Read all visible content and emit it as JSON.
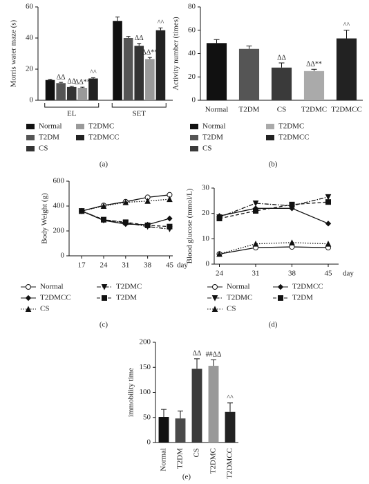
{
  "chart_data": [
    {
      "type": "bar",
      "ylabel": "Morris water maze (s)",
      "label": "(a)",
      "categories": [
        "EL",
        "SET"
      ],
      "ylim": [
        0,
        60
      ],
      "yticks": [
        0,
        20,
        40,
        60
      ],
      "series": [
        {
          "name": "Normal",
          "color": "#111111",
          "values": [
            13,
            51
          ],
          "errors": [
            0.5,
            2.5
          ],
          "annotations": [
            null,
            null
          ]
        },
        {
          "name": "T2DM",
          "color": "#555555",
          "values": [
            11,
            40
          ],
          "errors": [
            0.5,
            1
          ],
          "annotations": [
            "ΔΔ",
            null
          ]
        },
        {
          "name": "CS",
          "color": "#333333",
          "values": [
            8.5,
            35
          ],
          "errors": [
            0.4,
            1.5
          ],
          "annotations": [
            "ΔΔ",
            "ΔΔ"
          ]
        },
        {
          "name": "T2DMC",
          "color": "#9a9a9a",
          "values": [
            8,
            26.5
          ],
          "errors": [
            0.4,
            1
          ],
          "annotations": [
            "ΔΔ**",
            "ΔΔ**"
          ]
        },
        {
          "name": "T2DMCC",
          "color": "#222222",
          "values": [
            14,
            45
          ],
          "errors": [
            0.5,
            1.5
          ],
          "annotations": [
            "^^",
            "^^"
          ]
        }
      ]
    },
    {
      "type": "bar",
      "ylabel": "Activity number (times)",
      "label": "(b)",
      "categories": [
        "Normal",
        "T2DM",
        "CS",
        "T2DMC",
        "T2DMCC"
      ],
      "ylim": [
        0,
        80
      ],
      "yticks": [
        0,
        20,
        40,
        60,
        80
      ],
      "values": [
        49,
        44,
        28,
        25,
        53
      ],
      "errors": [
        3,
        2.5,
        4,
        1.5,
        7
      ],
      "colors": [
        "#111111",
        "#555555",
        "#3a3a3a",
        "#aaaaaa",
        "#222222"
      ],
      "annotations": [
        null,
        null,
        "ΔΔ",
        "ΔΔ**",
        "^^"
      ],
      "legend": true
    },
    {
      "type": "line",
      "ylabel": "Body Weight (g)",
      "xlabel": "day",
      "label": "(c)",
      "x": [
        17,
        24,
        31,
        38,
        45
      ],
      "xlim": [
        13,
        46
      ],
      "xticks": [
        17,
        24,
        31,
        38,
        45
      ],
      "ylim": [
        0,
        600
      ],
      "yticks": [
        0,
        200,
        400,
        600
      ],
      "series": [
        {
          "name": "Normal",
          "marker": "circle",
          "dash": "solid",
          "values": [
            360,
            405,
            435,
            470,
            490
          ]
        },
        {
          "name": "T2DMC",
          "marker": "triangle-down",
          "dash": "dashdot",
          "values": [
            360,
            290,
            265,
            235,
            215
          ]
        },
        {
          "name": "T2DMCC",
          "marker": "diamond",
          "dash": "solid",
          "values": [
            360,
            285,
            255,
            250,
            300
          ]
        },
        {
          "name": "T2DM",
          "marker": "square",
          "dash": "dashed",
          "values": [
            360,
            290,
            270,
            245,
            235
          ]
        },
        {
          "name": "CS",
          "marker": "triangle-up",
          "dash": "dotted",
          "values": [
            360,
            400,
            430,
            440,
            455
          ]
        }
      ]
    },
    {
      "type": "line",
      "ylabel": "Blood glucose (mmol/L)",
      "xlabel": "day",
      "label": "(d)",
      "x": [
        24,
        31,
        38,
        45
      ],
      "xlim": [
        23,
        47
      ],
      "xticks": [
        24,
        31,
        38,
        45
      ],
      "ylim": [
        0,
        30
      ],
      "yticks": [
        0,
        10,
        20,
        30
      ],
      "series": [
        {
          "name": "Normal",
          "marker": "circle",
          "dash": "solid",
          "values": [
            4,
            6.5,
            6.8,
            6.5
          ]
        },
        {
          "name": "T2DMCC",
          "marker": "diamond",
          "dash": "solid",
          "values": [
            19,
            22,
            22,
            16
          ]
        },
        {
          "name": "T2DMC",
          "marker": "triangle-down",
          "dash": "dashdot",
          "values": [
            18.5,
            24,
            23,
            26.5
          ]
        },
        {
          "name": "T2DM",
          "marker": "square",
          "dash": "dashed",
          "values": [
            18,
            21,
            23.5,
            24.5
          ]
        },
        {
          "name": "CS",
          "marker": "triangle-up",
          "dash": "dotted",
          "values": [
            4,
            8,
            8.5,
            8
          ]
        }
      ]
    },
    {
      "type": "bar",
      "ylabel": "immobility time",
      "label": "(e)",
      "categories": [
        "Normal",
        "T2DM",
        "CS",
        "T2DMC",
        "T2DMCC"
      ],
      "ylim": [
        0,
        200
      ],
      "yticks": [
        0,
        50,
        100,
        150,
        200
      ],
      "values": [
        51,
        48,
        147,
        153,
        61
      ],
      "errors": [
        15,
        15,
        20,
        12,
        18
      ],
      "colors": [
        "#111111",
        "#4a4a4a",
        "#3a3a3a",
        "#999999",
        "#222222"
      ],
      "annotations": [
        null,
        null,
        "ΔΔ",
        "##ΔΔ",
        "^^"
      ],
      "legend": false
    }
  ]
}
